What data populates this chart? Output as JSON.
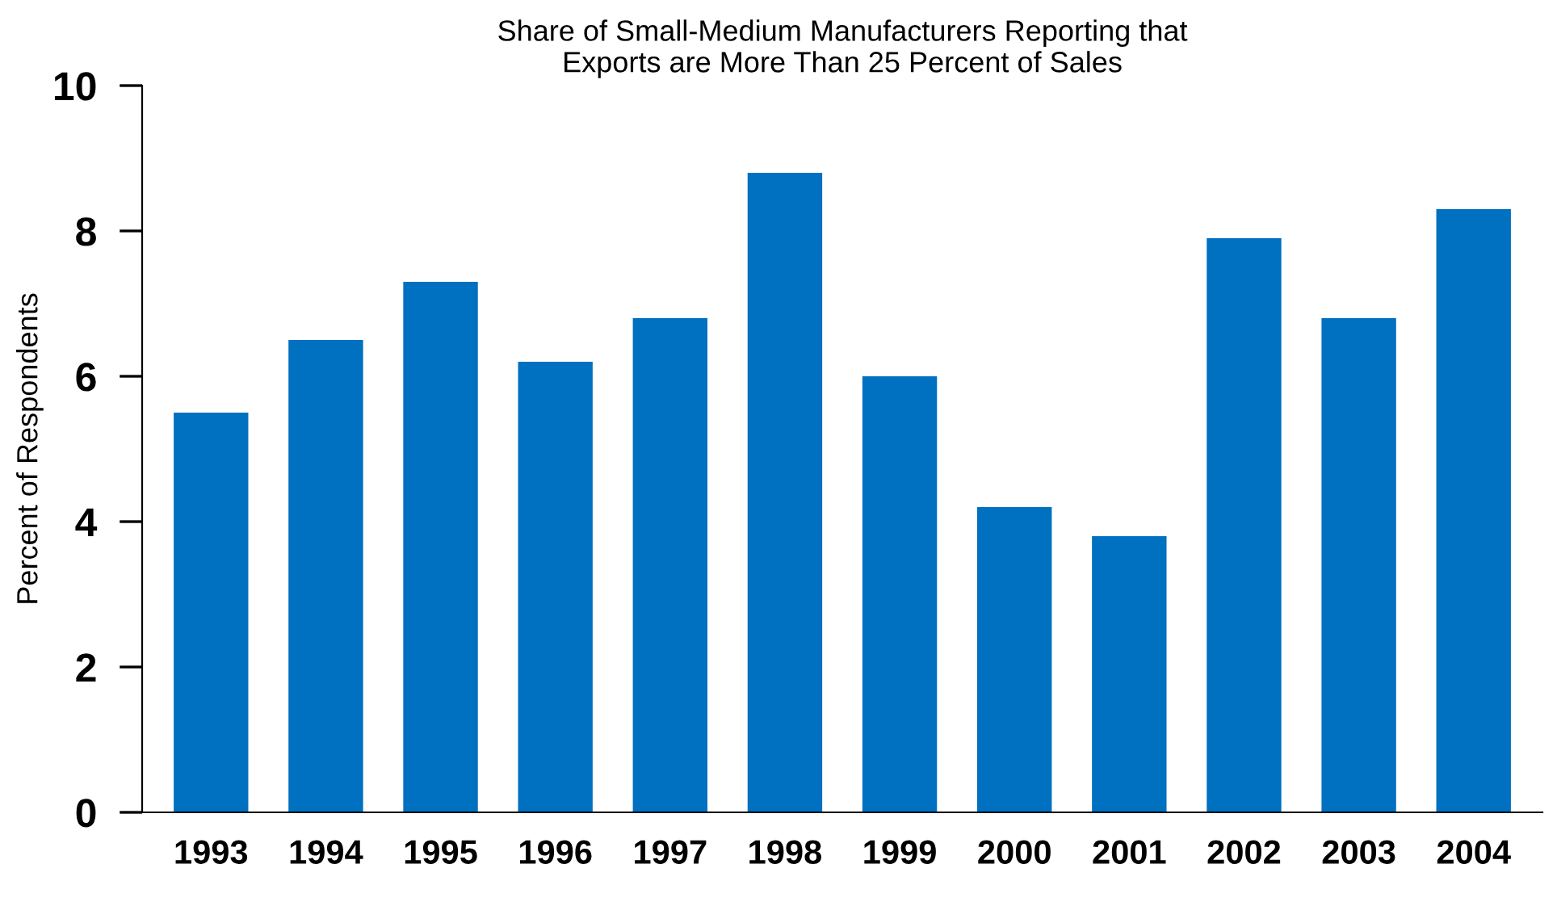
{
  "chart_data": {
    "type": "bar",
    "title": "Share of Small-Medium Manufacturers Reporting that\nExports are More Than 25 Percent of Sales",
    "ylabel": "Percent of Respondents",
    "categories": [
      "1993",
      "1994",
      "1995",
      "1996",
      "1997",
      "1998",
      "1999",
      "2000",
      "2001",
      "2002",
      "2003",
      "2004"
    ],
    "values": [
      5.5,
      6.5,
      7.3,
      6.2,
      6.8,
      8.8,
      6.0,
      4.2,
      3.8,
      7.9,
      6.8,
      8.3
    ],
    "color": "#0070c0",
    "ylim": [
      0,
      10
    ],
    "yticks": [
      0,
      2,
      4,
      6,
      8,
      10
    ],
    "grid": false,
    "legend": false
  }
}
